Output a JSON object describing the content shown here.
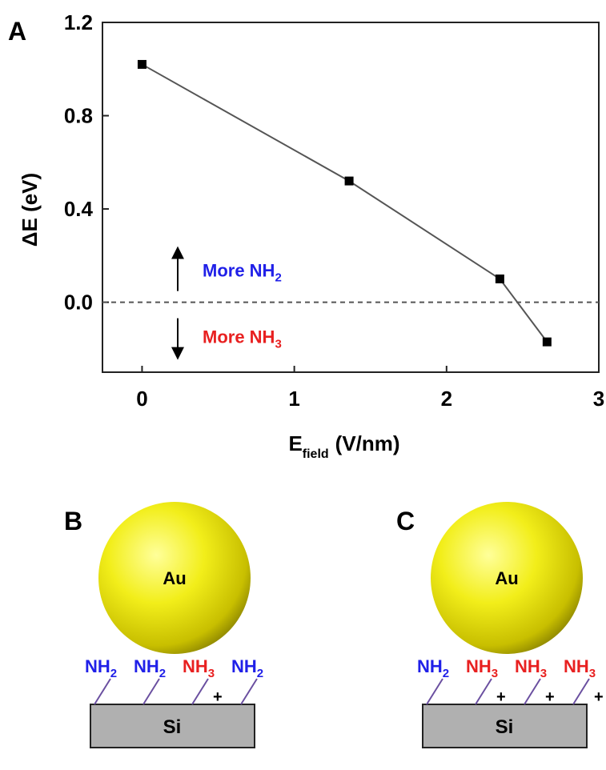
{
  "chart_data": {
    "type": "line",
    "panel_label": "A",
    "ylabel": "ΔE (eV)",
    "xlabel": {
      "main": "E",
      "sub": "field",
      "unit": "(V/nm)"
    },
    "x": [
      0,
      1.36,
      2.35,
      2.66
    ],
    "series": [
      {
        "color": "#555555",
        "marker_color": "#000000",
        "values": [
          1.02,
          0.52,
          0.1,
          -0.17
        ]
      }
    ],
    "xlim": [
      -0.26,
      3
    ],
    "xticks": [
      0,
      1,
      2,
      3
    ],
    "ylim": [
      -0.3,
      1.2
    ],
    "yticks": [
      {
        "value": 0,
        "label": "0.0"
      },
      0.4,
      0.8,
      1.2
    ],
    "reference_line": {
      "value": 0,
      "style": "dashed"
    },
    "annotations": [
      {
        "text": "More NH",
        "sub": "2",
        "color": "#2020e8",
        "direction": "up"
      },
      {
        "text": "More NH",
        "sub": "3",
        "color": "#e82020",
        "direction": "down"
      }
    ]
  },
  "panels": [
    {
      "label": "B",
      "particle": "Au",
      "substrate": "Si",
      "groups": [
        {
          "text": "NH",
          "sub": "2",
          "color": "#2020e8"
        },
        {
          "text": "NH",
          "sub": "2",
          "color": "#2020e8"
        },
        {
          "text": "NH",
          "sub": "3",
          "color": "#e82020",
          "charge": "+"
        },
        {
          "text": "NH",
          "sub": "2",
          "color": "#2020e8"
        }
      ]
    },
    {
      "label": "C",
      "particle": "Au",
      "substrate": "Si",
      "groups": [
        {
          "text": "NH",
          "sub": "2",
          "color": "#2020e8"
        },
        {
          "text": "NH",
          "sub": "3",
          "color": "#e82020",
          "charge": "+"
        },
        {
          "text": "NH",
          "sub": "3",
          "color": "#e82020",
          "charge": "+"
        },
        {
          "text": "NH",
          "sub": "3",
          "color": "#e82020",
          "charge": "+"
        }
      ]
    }
  ]
}
